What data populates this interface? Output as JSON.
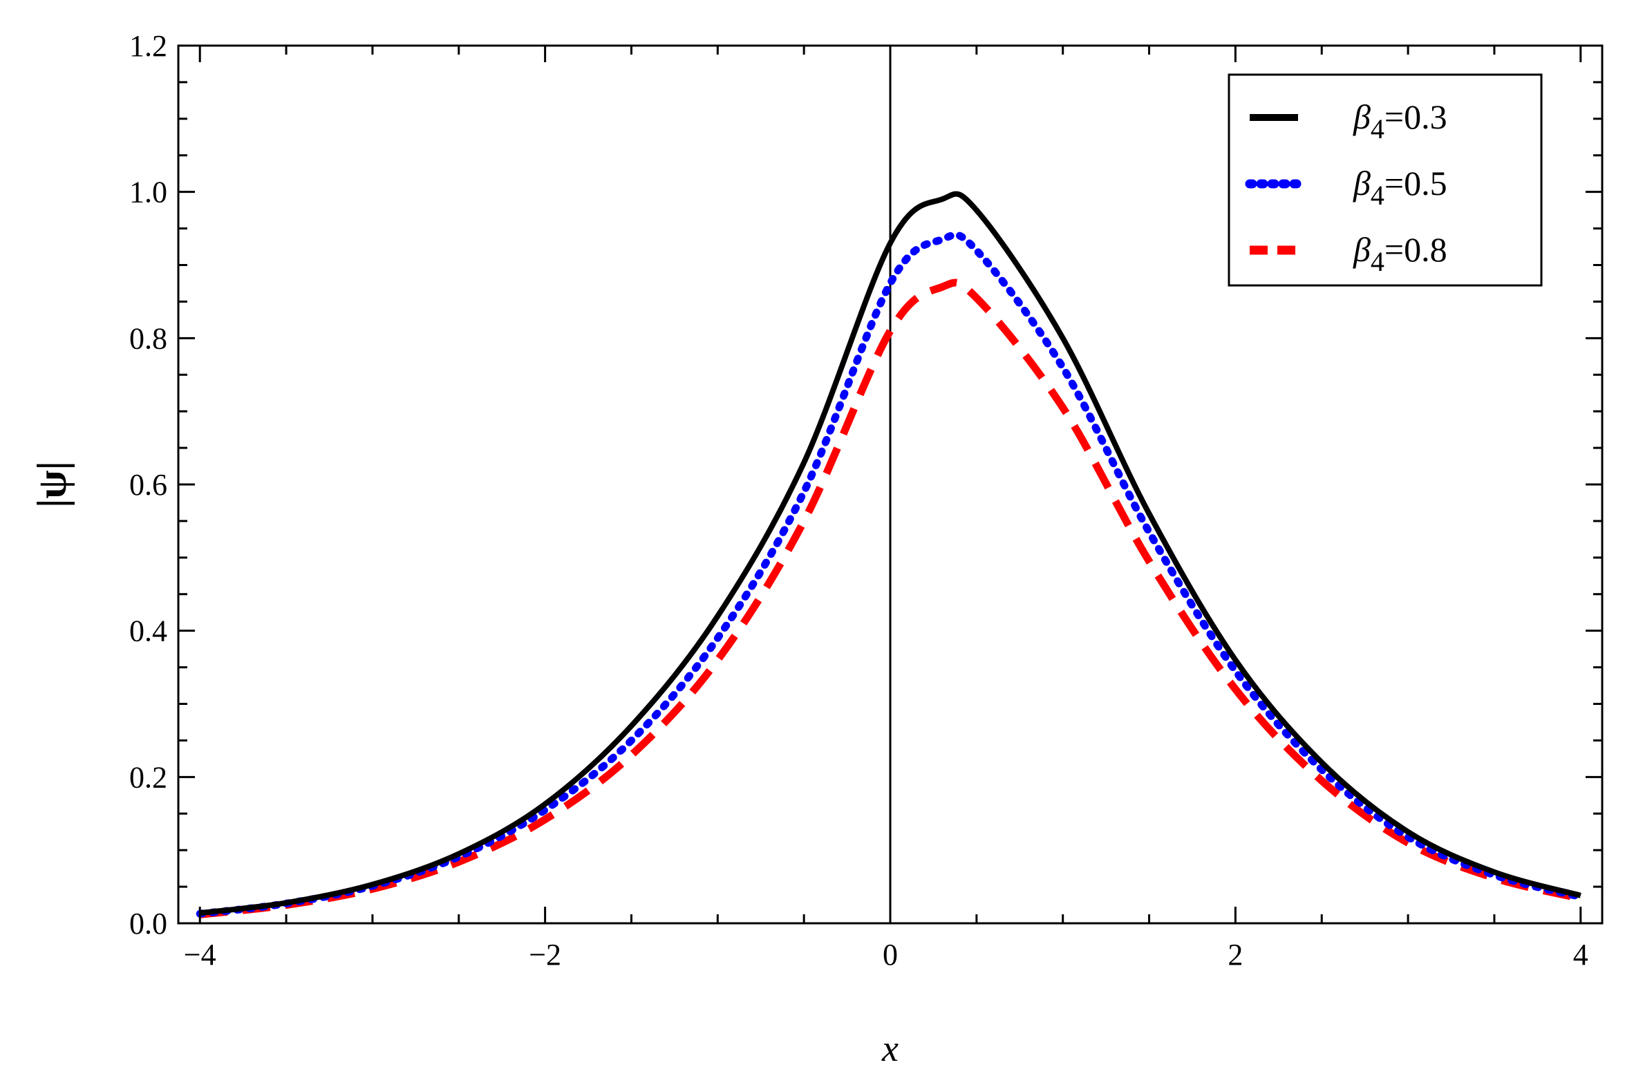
{
  "chart_data": {
    "type": "line",
    "title": "",
    "xlabel": "x",
    "ylabel": "|ψ|",
    "xlim": [
      -4,
      4
    ],
    "ylim": [
      0,
      1.2
    ],
    "x_ticks": [
      -4,
      -2,
      0,
      2,
      4
    ],
    "x_tick_labels": [
      "−4",
      "−2",
      "0",
      "2",
      "4"
    ],
    "y_ticks": [
      0,
      0.2,
      0.4,
      0.6,
      0.8,
      1.0,
      1.2
    ],
    "y_tick_labels": [
      "0.0",
      "0.2",
      "0.4",
      "0.6",
      "0.8",
      "1.0",
      "1.2"
    ],
    "grid": false,
    "legend_position": "top-right",
    "x": [
      -4,
      -3.5,
      -3,
      -2.5,
      -2,
      -1.5,
      -1,
      -0.5,
      0,
      0.3,
      0.5,
      1,
      1.5,
      2,
      2.5,
      3,
      3.5,
      4
    ],
    "series": [
      {
        "name": "β₄=0.3",
        "legend_symbol": "β",
        "legend_subscript": "4",
        "legend_value": "=0.3",
        "color": "#000000",
        "style": "solid",
        "values": [
          0.014,
          0.028,
          0.053,
          0.095,
          0.163,
          0.27,
          0.42,
          0.63,
          0.93,
          0.99,
          0.975,
          0.8,
          0.56,
          0.36,
          0.22,
          0.125,
          0.07,
          0.038
        ]
      },
      {
        "name": "β₄=0.5",
        "legend_symbol": "β",
        "legend_subscript": "4",
        "legend_value": "=0.5",
        "color": "#0000ff",
        "style": "dotted",
        "values": [
          0.013,
          0.027,
          0.051,
          0.091,
          0.155,
          0.25,
          0.39,
          0.59,
          0.875,
          0.935,
          0.92,
          0.76,
          0.535,
          0.345,
          0.21,
          0.118,
          0.066,
          0.036
        ]
      },
      {
        "name": "β₄=0.8",
        "legend_symbol": "β",
        "legend_subscript": "4",
        "legend_value": "=0.8",
        "color": "#ff0000",
        "style": "dashed",
        "values": [
          0.012,
          0.025,
          0.047,
          0.084,
          0.142,
          0.23,
          0.36,
          0.55,
          0.81,
          0.87,
          0.855,
          0.705,
          0.495,
          0.32,
          0.195,
          0.11,
          0.062,
          0.034
        ]
      }
    ]
  }
}
